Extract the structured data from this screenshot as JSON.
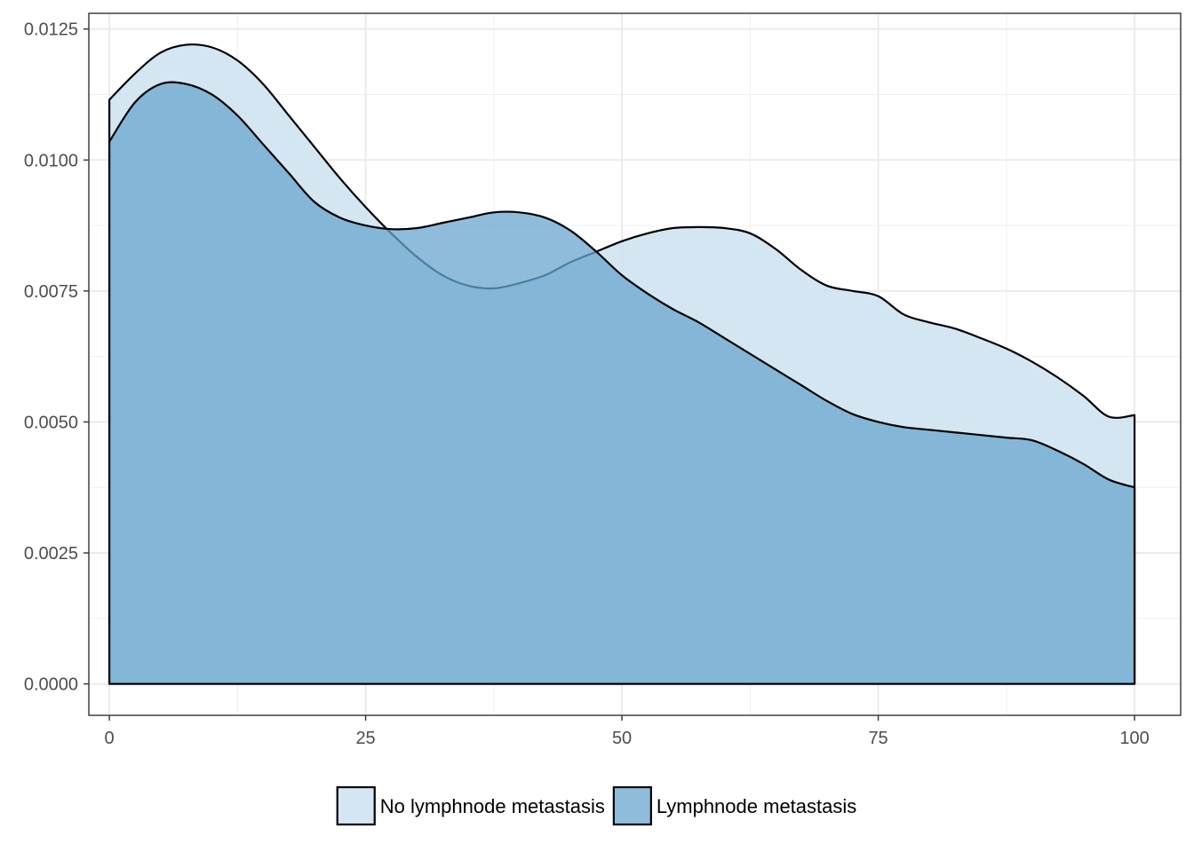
{
  "chart_data": {
    "type": "area",
    "title": "",
    "xlabel": "",
    "ylabel": "",
    "xlim": [
      -2,
      104.5
    ],
    "ylim": [
      -0.0006,
      0.0128
    ],
    "x_ticks": [
      0,
      25,
      50,
      75,
      100
    ],
    "x_tick_labels": [
      "0",
      "25",
      "50",
      "75",
      "100"
    ],
    "y_ticks": [
      0,
      0.0025,
      0.005,
      0.0075,
      0.01,
      0.0125
    ],
    "y_tick_labels": [
      "0.0000",
      "0.0025",
      "0.0050",
      "0.0075",
      "0.0100",
      "0.0125"
    ],
    "grid": true,
    "legend_position": "bottom",
    "series": [
      {
        "name": "No lymphnode metastasis",
        "color": "#cfe3f0",
        "opacity": 0.9,
        "x": [
          0,
          2.5,
          5,
          7.5,
          10,
          12.5,
          15,
          17.5,
          20,
          22.5,
          25,
          27.5,
          30,
          32.5,
          35,
          37.5,
          40,
          42.5,
          45,
          47.5,
          50,
          52.5,
          55,
          57.5,
          60,
          62.5,
          65,
          67.5,
          70,
          72.5,
          75,
          77.5,
          80,
          82.5,
          85,
          87.5,
          90,
          92.5,
          95,
          97.5,
          100
        ],
        "y": [
          0.01115,
          0.01165,
          0.01205,
          0.0122,
          0.01215,
          0.0119,
          0.01145,
          0.01085,
          0.01025,
          0.00965,
          0.0091,
          0.0086,
          0.00815,
          0.0078,
          0.0076,
          0.00755,
          0.00765,
          0.0078,
          0.00805,
          0.00825,
          0.00845,
          0.0086,
          0.0087,
          0.00872,
          0.0087,
          0.0086,
          0.0083,
          0.0079,
          0.0076,
          0.0075,
          0.0074,
          0.00705,
          0.0069,
          0.00678,
          0.0066,
          0.0064,
          0.00615,
          0.00585,
          0.0055,
          0.0051,
          0.00513
        ]
      },
      {
        "name": "Lymphnode metastasis",
        "color": "#6aa5cf",
        "opacity": 0.75,
        "x": [
          0,
          2.5,
          5,
          7.5,
          10,
          12.5,
          15,
          17.5,
          20,
          22.5,
          25,
          27.5,
          30,
          32.5,
          35,
          37.5,
          40,
          42.5,
          45,
          47.5,
          50,
          52.5,
          55,
          57.5,
          60,
          62.5,
          65,
          67.5,
          70,
          72.5,
          75,
          77.5,
          80,
          82.5,
          85,
          87.5,
          90,
          92.5,
          95,
          97.5,
          100
        ],
        "y": [
          0.01035,
          0.0111,
          0.01145,
          0.01145,
          0.01125,
          0.01085,
          0.0103,
          0.00975,
          0.0092,
          0.0089,
          0.00875,
          0.00868,
          0.0087,
          0.0088,
          0.0089,
          0.009,
          0.009,
          0.0089,
          0.00865,
          0.00825,
          0.0078,
          0.00745,
          0.00715,
          0.0069,
          0.0066,
          0.0063,
          0.006,
          0.0057,
          0.0054,
          0.00515,
          0.005,
          0.0049,
          0.00485,
          0.0048,
          0.00475,
          0.0047,
          0.00465,
          0.00445,
          0.0042,
          0.0039,
          0.00375
        ]
      }
    ]
  }
}
